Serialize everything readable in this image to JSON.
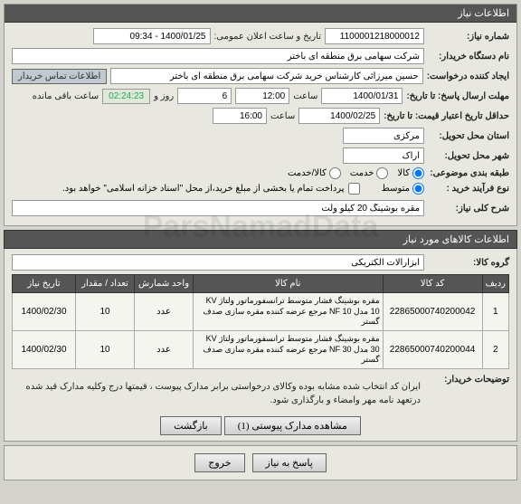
{
  "panel_title": "اطلاعات نیاز",
  "need_number_label": "شماره نیاز:",
  "need_number": "1100001218000012",
  "public_date_label": "تاریخ و ساعت اعلان عمومی:",
  "public_date": "1400/01/25 - 09:34",
  "buyer_name_label": "نام دستگاه خریدار:",
  "buyer_name": "شرکت سهامی برق منطقه ای باختر",
  "creator_label": "ایجاد کننده درخواست:",
  "creator": "حسین میرزائی کارشناس خرید شرکت سهامی برق منطقه ای باختر",
  "contact_btn": "اطلاعات تماس خریدار",
  "deadline_label": "مهلت ارسال پاسخ: تا تاریخ:",
  "deadline_date": "1400/01/31",
  "time_label": "ساعت",
  "deadline_time": "12:00",
  "day_label": "روز و",
  "days_left": "6",
  "countdown": "02:24:23",
  "remaining_label": "ساعت باقی مانده",
  "validity_label": "حداقل تاریخ اعتبار قیمت: تا تاریخ:",
  "validity_date": "1400/02/25",
  "validity_time": "16:00",
  "province_label": "استان محل تحویل:",
  "province": "مرکزی",
  "city_label": "شهر محل تحویل:",
  "city": "اراک",
  "category_label": "طبقه بندی موضوعی:",
  "cat_goods": "کالا",
  "cat_service": "خدمت",
  "cat_goods_service": "کالا/خدمت",
  "process_label": "نوع فرآیند خرید :",
  "proc_med": "متوسط",
  "treasury_note": "پرداخت تمام یا بخشی از مبلغ خرید،از محل \"اسناد خزانه اسلامی\" خواهد بود.",
  "desc_label": "شرح کلی نیاز:",
  "desc_text": "مقره بوشینگ 20 کیلو ولت",
  "items_header": "اطلاعات کالاهای مورد نیاز",
  "group_label": "گروه کالا:",
  "group_value": "ابزارآلات الکتریکی",
  "th_row": "ردیف",
  "th_code": "کد کالا",
  "th_name": "نام کالا",
  "th_unit": "واحد شمارش",
  "th_qty": "تعداد / مقدار",
  "th_date": "تاریخ نیاز",
  "rows": [
    {
      "n": "1",
      "code": "22865000740200042",
      "name": "مقره بوشینگ فشار متوسط ترانسفورماتور ولتاژ KV 10 مدل NF 10 مرجع عرضه کننده مقره سازی صدف گستر",
      "unit": "عدد",
      "qty": "10",
      "date": "1400/02/30"
    },
    {
      "n": "2",
      "code": "22865000740200044",
      "name": "مقره بوشینگ فشار متوسط ترانسفورماتور ولتاژ KV 30 مدل NF 30 مرجع عرضه کننده مقره سازی صدف گستر",
      "unit": "عدد",
      "qty": "10",
      "date": "1400/02/30"
    }
  ],
  "buyer_notes_label": "توضیحات خریدار:",
  "buyer_notes": "ایران کد انتخاب شده مشابه بوده وکالای درخواستی برابر مدارک  پیوست  ، قیمتها درج وکلیه مدارک قید شده درتعهد نامه مهر وامضاء و بارگذاری شود.",
  "btn_attachments": "مشاهده مدارک پیوستی (1)",
  "btn_back": "بازگشت",
  "btn_reply": "پاسخ به نیاز",
  "btn_exit": "خروج",
  "watermark": "ParsNamadData"
}
